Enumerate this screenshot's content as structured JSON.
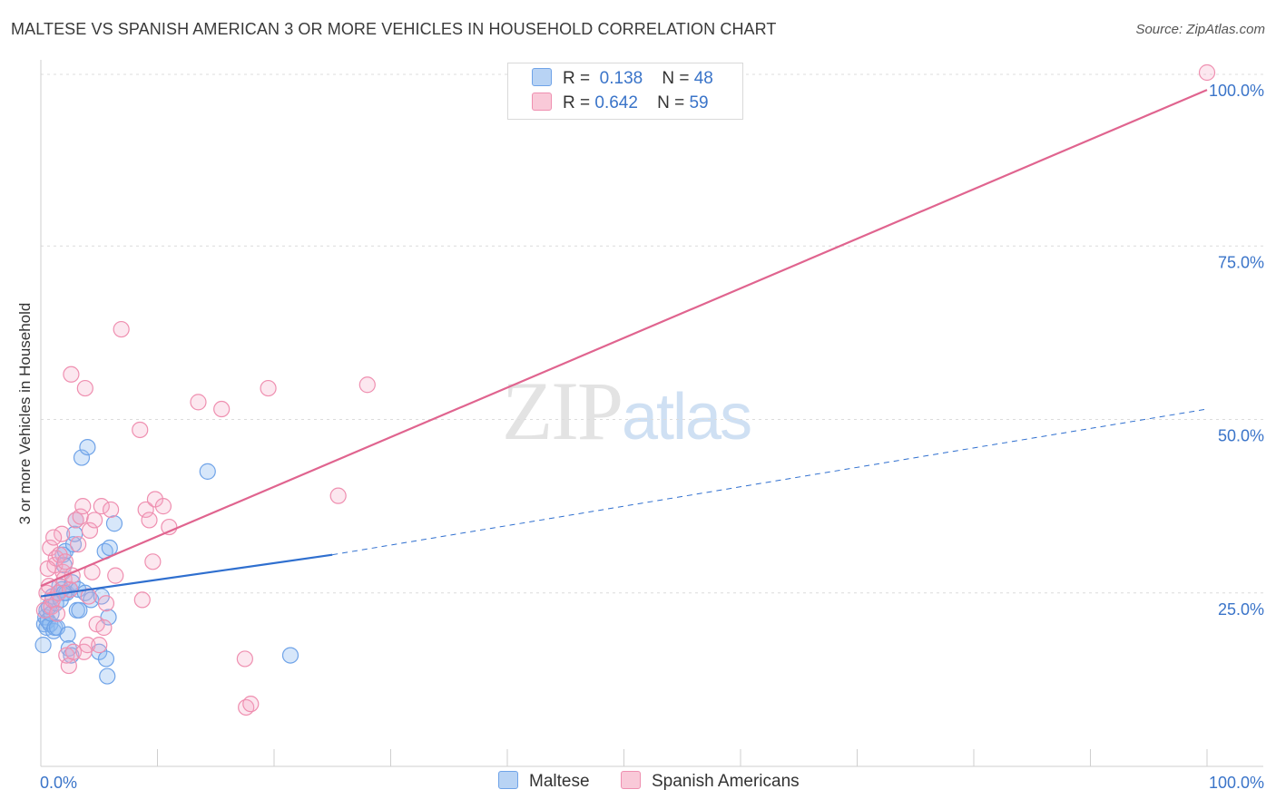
{
  "title": "MALTESE VS SPANISH AMERICAN 3 OR MORE VEHICLES IN HOUSEHOLD CORRELATION CHART",
  "source": "Source: ZipAtlas.com",
  "watermark": {
    "zip": "ZIP",
    "atlas": "atlas"
  },
  "legend": {
    "r_label": "R =",
    "n_label": "N =",
    "rows": [
      {
        "series": "Maltese",
        "r": "0.138",
        "n": "48",
        "color": "#6fa3e8",
        "fill": "#b8d3f4"
      },
      {
        "series": "Spanish Americans",
        "r": "0.642",
        "n": "59",
        "color": "#ef8fb0",
        "fill": "#f9c9d8"
      }
    ]
  },
  "colors": {
    "maltese_line": "#2f6fcf",
    "spanish_line": "#e0648f",
    "axis_text": "#3a74c9",
    "grid": "#dcdcdc"
  },
  "chart_data": {
    "type": "scatter",
    "title": "MALTESE VS SPANISH AMERICAN 3 OR MORE VEHICLES IN HOUSEHOLD CORRELATION CHART",
    "xlabel": "",
    "ylabel": "3 or more Vehicles in Household",
    "xlim": [
      0,
      100
    ],
    "ylim": [
      0,
      100
    ],
    "x_tick_labels": [
      "0.0%",
      "100.0%"
    ],
    "y_tick_labels": [
      "25.0%",
      "50.0%",
      "75.0%",
      "100.0%"
    ],
    "y_ticks": [
      25,
      50,
      75,
      100
    ],
    "grid": "horizontal dashed",
    "legend_position": "top-center",
    "series": [
      {
        "name": "Maltese",
        "points": [
          [
            0.2,
            17.5
          ],
          [
            0.3,
            20.5
          ],
          [
            0.4,
            21.5
          ],
          [
            0.5,
            22.5
          ],
          [
            0.5,
            20.0
          ],
          [
            0.6,
            21.0
          ],
          [
            0.7,
            23.0
          ],
          [
            0.8,
            20.5
          ],
          [
            0.9,
            22.0
          ],
          [
            1.0,
            24.5
          ],
          [
            1.1,
            19.5
          ],
          [
            1.2,
            20.0
          ],
          [
            1.3,
            23.5
          ],
          [
            1.4,
            20.0
          ],
          [
            1.5,
            25.0
          ],
          [
            1.6,
            26.0
          ],
          [
            1.7,
            24.0
          ],
          [
            1.8,
            25.5
          ],
          [
            1.9,
            30.5
          ],
          [
            2.0,
            29.0
          ],
          [
            2.1,
            31.0
          ],
          [
            2.2,
            25.0
          ],
          [
            2.3,
            19.0
          ],
          [
            2.4,
            17.0
          ],
          [
            2.5,
            25.5
          ],
          [
            2.6,
            16.0
          ],
          [
            2.7,
            26.5
          ],
          [
            2.8,
            32.0
          ],
          [
            2.9,
            33.5
          ],
          [
            3.0,
            35.5
          ],
          [
            3.1,
            22.5
          ],
          [
            3.2,
            25.5
          ],
          [
            3.3,
            22.5
          ],
          [
            3.5,
            44.5
          ],
          [
            3.8,
            25.0
          ],
          [
            4.0,
            46.0
          ],
          [
            4.3,
            24.0
          ],
          [
            5.0,
            16.5
          ],
          [
            5.2,
            24.5
          ],
          [
            5.6,
            15.5
          ],
          [
            5.5,
            31.0
          ],
          [
            5.7,
            13.0
          ],
          [
            5.9,
            31.5
          ],
          [
            5.8,
            21.5
          ],
          [
            6.3,
            35.0
          ],
          [
            14.3,
            42.5
          ],
          [
            21.4,
            16.0
          ],
          [
            2.0,
            25.0
          ]
        ],
        "trend": {
          "x0": 0,
          "y0": 24.5,
          "x1": 25,
          "y1": 30.5,
          "dashed_to": 100,
          "dashed_y": 51.5
        }
      },
      {
        "name": "Spanish Americans",
        "points": [
          [
            0.3,
            22.5
          ],
          [
            0.5,
            25.0
          ],
          [
            0.7,
            26.0
          ],
          [
            0.8,
            31.5
          ],
          [
            0.9,
            23.0
          ],
          [
            1.0,
            24.0
          ],
          [
            1.2,
            29.0
          ],
          [
            1.3,
            30.0
          ],
          [
            1.4,
            22.0
          ],
          [
            1.5,
            25.0
          ],
          [
            1.6,
            30.5
          ],
          [
            1.8,
            33.5
          ],
          [
            1.9,
            28.0
          ],
          [
            2.0,
            27.0
          ],
          [
            2.1,
            29.5
          ],
          [
            2.2,
            16.0
          ],
          [
            2.4,
            14.5
          ],
          [
            2.5,
            25.5
          ],
          [
            2.6,
            56.5
          ],
          [
            2.8,
            16.5
          ],
          [
            3.0,
            35.5
          ],
          [
            3.2,
            32.0
          ],
          [
            3.4,
            36.0
          ],
          [
            3.6,
            37.5
          ],
          [
            3.7,
            16.5
          ],
          [
            3.8,
            54.5
          ],
          [
            4.0,
            17.5
          ],
          [
            4.2,
            34.0
          ],
          [
            4.4,
            28.0
          ],
          [
            4.6,
            35.5
          ],
          [
            4.8,
            20.5
          ],
          [
            5.0,
            17.5
          ],
          [
            5.2,
            37.5
          ],
          [
            5.4,
            20.0
          ],
          [
            5.6,
            23.5
          ],
          [
            6.0,
            37.0
          ],
          [
            6.4,
            27.5
          ],
          [
            6.9,
            63.0
          ],
          [
            8.5,
            48.5
          ],
          [
            8.7,
            24.0
          ],
          [
            9.0,
            37.0
          ],
          [
            9.3,
            35.5
          ],
          [
            9.6,
            29.5
          ],
          [
            9.8,
            38.5
          ],
          [
            10.5,
            37.5
          ],
          [
            11.0,
            34.5
          ],
          [
            13.5,
            52.5
          ],
          [
            15.5,
            51.5
          ],
          [
            17.5,
            15.5
          ],
          [
            17.6,
            8.5
          ],
          [
            18.0,
            9.0
          ],
          [
            19.5,
            54.5
          ],
          [
            25.5,
            39.0
          ],
          [
            28.0,
            55.0
          ],
          [
            100.0,
            100.0
          ],
          [
            1.1,
            33.0
          ],
          [
            2.7,
            27.5
          ],
          [
            4.1,
            24.5
          ],
          [
            0.6,
            28.5
          ]
        ],
        "trend": {
          "x0": 0,
          "y0": 26.0,
          "x1": 100,
          "y1": 97.5
        }
      }
    ]
  }
}
